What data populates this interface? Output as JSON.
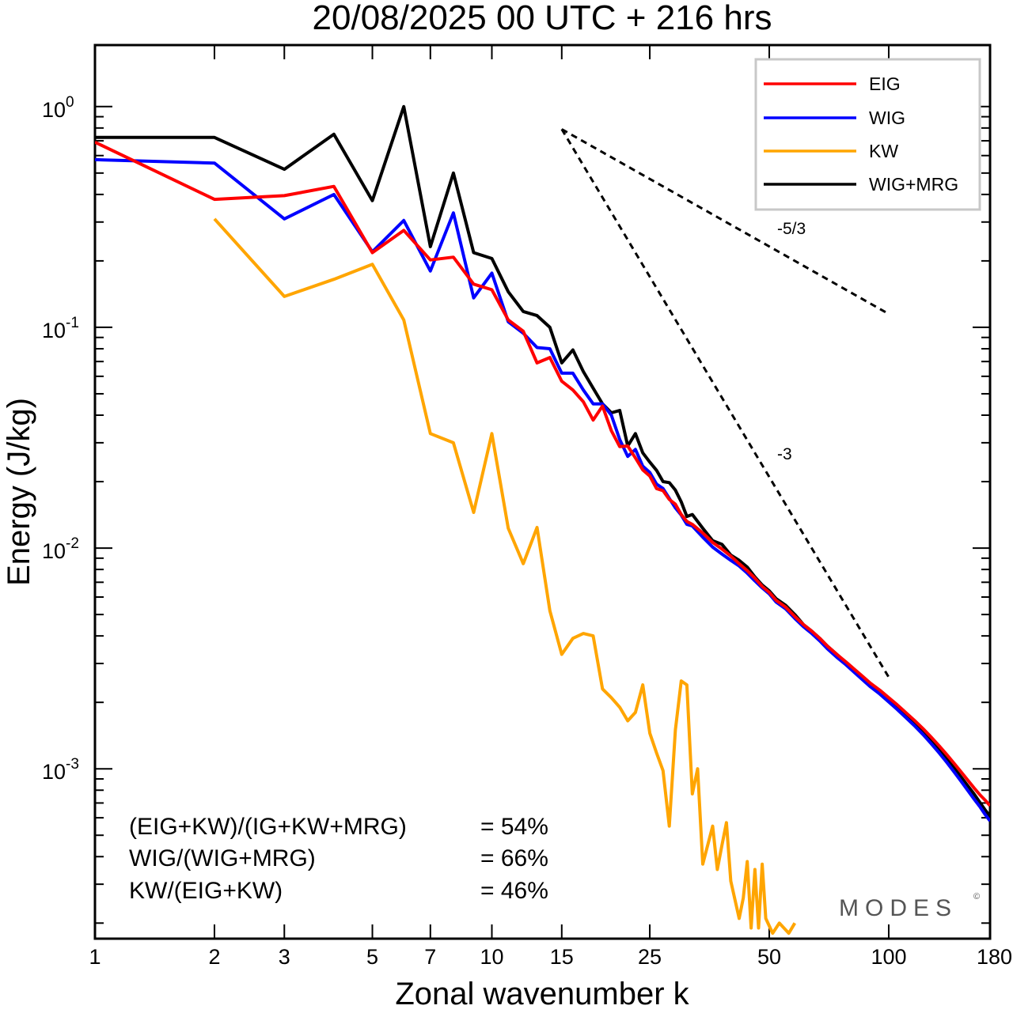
{
  "chart_data": {
    "type": "line",
    "title": "20/08/2025  00 UTC  + 216 hrs",
    "xlabel": "Zonal wavenumber k",
    "ylabel": "Energy (J/kg)",
    "xscale": "log",
    "yscale": "log",
    "xlim": [
      1,
      180
    ],
    "ylim": [
      0.00017,
      1.9
    ],
    "x_ticks": [
      1,
      2,
      3,
      5,
      7,
      10,
      15,
      25,
      50,
      100,
      180
    ],
    "x_tick_labels": [
      "1",
      "2",
      "3",
      "5",
      "7",
      "10",
      "15",
      "25",
      "50",
      "100",
      "180"
    ],
    "y_ticks": [
      {
        "value": 1,
        "base": "10",
        "exp": "0"
      },
      {
        "value": 0.1,
        "base": "10",
        "exp": "-1"
      },
      {
        "value": 0.01,
        "base": "10",
        "exp": "-2"
      },
      {
        "value": 0.001,
        "base": "10",
        "exp": "-3"
      }
    ],
    "legend_position": "top-right",
    "series": [
      {
        "name": "EIG",
        "color": "#ff0000",
        "points": [
          [
            1,
            0.69
          ],
          [
            2,
            0.38
          ],
          [
            3,
            0.395
          ],
          [
            4,
            0.435
          ],
          [
            5,
            0.218
          ],
          [
            6,
            0.275
          ],
          [
            7,
            0.202
          ],
          [
            8,
            0.208
          ],
          [
            9,
            0.157
          ],
          [
            10,
            0.148
          ],
          [
            11,
            0.108
          ],
          [
            12,
            0.096
          ],
          [
            13,
            0.069
          ],
          [
            14,
            0.073
          ],
          [
            15,
            0.057
          ],
          [
            16,
            0.052
          ],
          [
            17,
            0.046
          ],
          [
            18,
            0.038
          ],
          [
            19,
            0.044
          ],
          [
            20,
            0.034
          ],
          [
            21,
            0.0288
          ],
          [
            22,
            0.029
          ],
          [
            23,
            0.0256
          ],
          [
            24,
            0.0226
          ],
          [
            25,
            0.0212
          ],
          [
            26,
            0.0186
          ],
          [
            27,
            0.0182
          ],
          [
            28,
            0.0166
          ],
          [
            29,
            0.0158
          ],
          [
            30,
            0.0142
          ],
          [
            31,
            0.0132
          ],
          [
            32,
            0.0128
          ],
          [
            34,
            0.0117
          ],
          [
            36,
            0.0106
          ],
          [
            38,
            0.0099
          ],
          [
            40,
            0.0092
          ],
          [
            42,
            0.0085
          ],
          [
            44,
            0.0079
          ],
          [
            46,
            0.0073
          ],
          [
            48,
            0.0067
          ],
          [
            50,
            0.0063
          ],
          [
            52,
            0.0058
          ],
          [
            55,
            0.0054
          ],
          [
            58,
            0.0049
          ],
          [
            61,
            0.0045
          ],
          [
            64,
            0.0042
          ],
          [
            67,
            0.0039
          ],
          [
            70,
            0.0036
          ],
          [
            74,
            0.0033
          ],
          [
            78,
            0.00305
          ],
          [
            82,
            0.00282
          ],
          [
            86,
            0.00262
          ],
          [
            90,
            0.00244
          ],
          [
            95,
            0.00227
          ],
          [
            100,
            0.0021
          ],
          [
            105,
            0.00195
          ],
          [
            110,
            0.00181
          ],
          [
            116,
            0.00166
          ],
          [
            122,
            0.00152
          ],
          [
            128,
            0.00139
          ],
          [
            134,
            0.00127
          ],
          [
            140,
            0.00116
          ],
          [
            146,
            0.00106
          ],
          [
            152,
            0.00097
          ],
          [
            158,
            0.00089
          ],
          [
            164,
            0.00082
          ],
          [
            170,
            0.00076
          ],
          [
            175,
            0.00072
          ],
          [
            180,
            0.00068
          ]
        ]
      },
      {
        "name": "WIG",
        "color": "#0000ff",
        "points": [
          [
            1,
            0.575
          ],
          [
            2,
            0.555
          ],
          [
            3,
            0.31
          ],
          [
            4,
            0.4
          ],
          [
            5,
            0.22
          ],
          [
            6,
            0.305
          ],
          [
            7,
            0.18
          ],
          [
            8,
            0.33
          ],
          [
            9,
            0.136
          ],
          [
            10,
            0.176
          ],
          [
            11,
            0.106
          ],
          [
            12,
            0.094
          ],
          [
            13,
            0.081
          ],
          [
            14,
            0.08
          ],
          [
            15,
            0.062
          ],
          [
            16,
            0.062
          ],
          [
            17,
            0.052
          ],
          [
            18,
            0.045
          ],
          [
            19,
            0.045
          ],
          [
            20,
            0.04
          ],
          [
            21,
            0.031
          ],
          [
            22,
            0.026
          ],
          [
            23,
            0.028
          ],
          [
            24,
            0.0235
          ],
          [
            25,
            0.022
          ],
          [
            26,
            0.0195
          ],
          [
            27,
            0.0186
          ],
          [
            28,
            0.0168
          ],
          [
            29,
            0.0152
          ],
          [
            30,
            0.0141
          ],
          [
            31,
            0.0128
          ],
          [
            32,
            0.0126
          ],
          [
            34,
            0.0112
          ],
          [
            36,
            0.0101
          ],
          [
            38,
            0.0094
          ],
          [
            40,
            0.0088
          ],
          [
            42,
            0.0083
          ],
          [
            44,
            0.0077
          ],
          [
            46,
            0.0071
          ],
          [
            48,
            0.0066
          ],
          [
            50,
            0.0062
          ],
          [
            52,
            0.0057
          ],
          [
            55,
            0.0053
          ],
          [
            58,
            0.0048
          ],
          [
            61,
            0.0044
          ],
          [
            64,
            0.0041
          ],
          [
            67,
            0.0038
          ],
          [
            70,
            0.0035
          ],
          [
            74,
            0.0032
          ],
          [
            78,
            0.00296
          ],
          [
            82,
            0.00273
          ],
          [
            86,
            0.00253
          ],
          [
            90,
            0.00235
          ],
          [
            95,
            0.00218
          ],
          [
            100,
            0.00201
          ],
          [
            105,
            0.00186
          ],
          [
            110,
            0.00172
          ],
          [
            116,
            0.00157
          ],
          [
            122,
            0.00143
          ],
          [
            128,
            0.0013
          ],
          [
            134,
            0.00118
          ],
          [
            140,
            0.00107
          ],
          [
            146,
            0.00097
          ],
          [
            152,
            0.00088
          ],
          [
            158,
            0.0008
          ],
          [
            164,
            0.00073
          ],
          [
            170,
            0.00067
          ],
          [
            175,
            0.00062
          ],
          [
            180,
            0.00058
          ]
        ]
      },
      {
        "name": "KW",
        "color": "#ffa500",
        "points": [
          [
            2,
            0.31
          ],
          [
            3,
            0.138
          ],
          [
            4,
            0.165
          ],
          [
            5,
            0.193
          ],
          [
            6,
            0.108
          ],
          [
            7,
            0.033
          ],
          [
            8,
            0.03
          ],
          [
            9,
            0.0145
          ],
          [
            10,
            0.033
          ],
          [
            11,
            0.0123
          ],
          [
            12,
            0.0085
          ],
          [
            13,
            0.0124
          ],
          [
            14,
            0.0052
          ],
          [
            15,
            0.0033
          ],
          [
            16,
            0.0039
          ],
          [
            17,
            0.0041
          ],
          [
            18,
            0.004
          ],
          [
            19,
            0.0023
          ],
          [
            20,
            0.0021
          ],
          [
            21,
            0.0019
          ],
          [
            22,
            0.00165
          ],
          [
            23,
            0.0018
          ],
          [
            24,
            0.0024
          ],
          [
            25,
            0.00145
          ],
          [
            26,
            0.00118
          ],
          [
            27,
            0.00098
          ],
          [
            28,
            0.00055
          ],
          [
            29,
            0.0015
          ],
          [
            30,
            0.0025
          ],
          [
            31,
            0.0024
          ],
          [
            32,
            0.00077
          ],
          [
            33,
            0.001
          ],
          [
            34,
            0.00037
          ],
          [
            36,
            0.00055
          ],
          [
            37,
            0.00035
          ],
          [
            38,
            0.00045
          ],
          [
            39,
            0.00057
          ],
          [
            40,
            0.00031
          ],
          [
            42,
            0.00021
          ],
          [
            43,
            0.00026
          ],
          [
            44,
            0.00038
          ],
          [
            45,
            0.00019
          ],
          [
            46,
            0.00035
          ],
          [
            47,
            0.00019
          ],
          [
            48,
            0.00037
          ],
          [
            49,
            0.00021
          ],
          [
            51,
            0.00018
          ],
          [
            53,
            0.0002
          ],
          [
            56,
            0.00018
          ],
          [
            58,
            0.0002
          ]
        ]
      },
      {
        "name": "WIG+MRG",
        "color": "#000000",
        "points": [
          [
            1,
            0.725
          ],
          [
            2,
            0.725
          ],
          [
            3,
            0.52
          ],
          [
            4,
            0.75
          ],
          [
            5,
            0.375
          ],
          [
            6,
            1.0
          ],
          [
            7,
            0.232
          ],
          [
            8,
            0.5
          ],
          [
            9,
            0.218
          ],
          [
            10,
            0.205
          ],
          [
            11,
            0.145
          ],
          [
            12,
            0.118
          ],
          [
            13,
            0.113
          ],
          [
            14,
            0.1
          ],
          [
            15,
            0.069
          ],
          [
            16,
            0.079
          ],
          [
            17,
            0.063
          ],
          [
            18,
            0.053
          ],
          [
            19,
            0.045
          ],
          [
            20,
            0.041
          ],
          [
            21,
            0.042
          ],
          [
            22,
            0.029
          ],
          [
            23,
            0.033
          ],
          [
            24,
            0.027
          ],
          [
            25,
            0.0245
          ],
          [
            26,
            0.0225
          ],
          [
            27,
            0.02
          ],
          [
            28,
            0.0198
          ],
          [
            29,
            0.0183
          ],
          [
            30,
            0.0162
          ],
          [
            31,
            0.0139
          ],
          [
            32,
            0.0142
          ],
          [
            34,
            0.0123
          ],
          [
            36,
            0.0108
          ],
          [
            38,
            0.0104
          ],
          [
            40,
            0.0093
          ],
          [
            42,
            0.0088
          ],
          [
            44,
            0.0082
          ],
          [
            46,
            0.0074
          ],
          [
            48,
            0.0068
          ],
          [
            50,
            0.0064
          ],
          [
            52,
            0.0059
          ],
          [
            55,
            0.0055
          ],
          [
            58,
            0.005
          ],
          [
            61,
            0.0045
          ],
          [
            64,
            0.0042
          ],
          [
            67,
            0.0039
          ],
          [
            70,
            0.0036
          ],
          [
            74,
            0.0033
          ],
          [
            78,
            0.00302
          ],
          [
            82,
            0.00279
          ],
          [
            86,
            0.00258
          ],
          [
            90,
            0.0024
          ],
          [
            95,
            0.00222
          ],
          [
            100,
            0.00205
          ],
          [
            105,
            0.0019
          ],
          [
            110,
            0.00176
          ],
          [
            116,
            0.00161
          ],
          [
            122,
            0.00147
          ],
          [
            128,
            0.00134
          ],
          [
            134,
            0.00122
          ],
          [
            140,
            0.00111
          ],
          [
            146,
            0.00101
          ],
          [
            152,
            0.00092
          ],
          [
            158,
            0.00084
          ],
          [
            164,
            0.00077
          ],
          [
            170,
            0.0007
          ],
          [
            175,
            0.00065
          ],
          [
            180,
            0.00061
          ]
        ]
      }
    ],
    "reference_lines": [
      {
        "label": "-5/3",
        "from": [
          15,
          0.79
        ],
        "to": [
          100,
          0.115
        ]
      },
      {
        "label": "-3",
        "from": [
          15,
          0.79
        ],
        "to": [
          100,
          0.0026
        ]
      }
    ],
    "annotations": [
      {
        "label": "(EIG+KW)/(IG+KW+MRG)",
        "value": "= 54%"
      },
      {
        "label": "WIG/(WIG+MRG)",
        "value": "= 66%"
      },
      {
        "label": "KW/(EIG+KW)",
        "value": "= 46%"
      }
    ],
    "watermark": "MODES",
    "watermark_symbol": "©"
  }
}
